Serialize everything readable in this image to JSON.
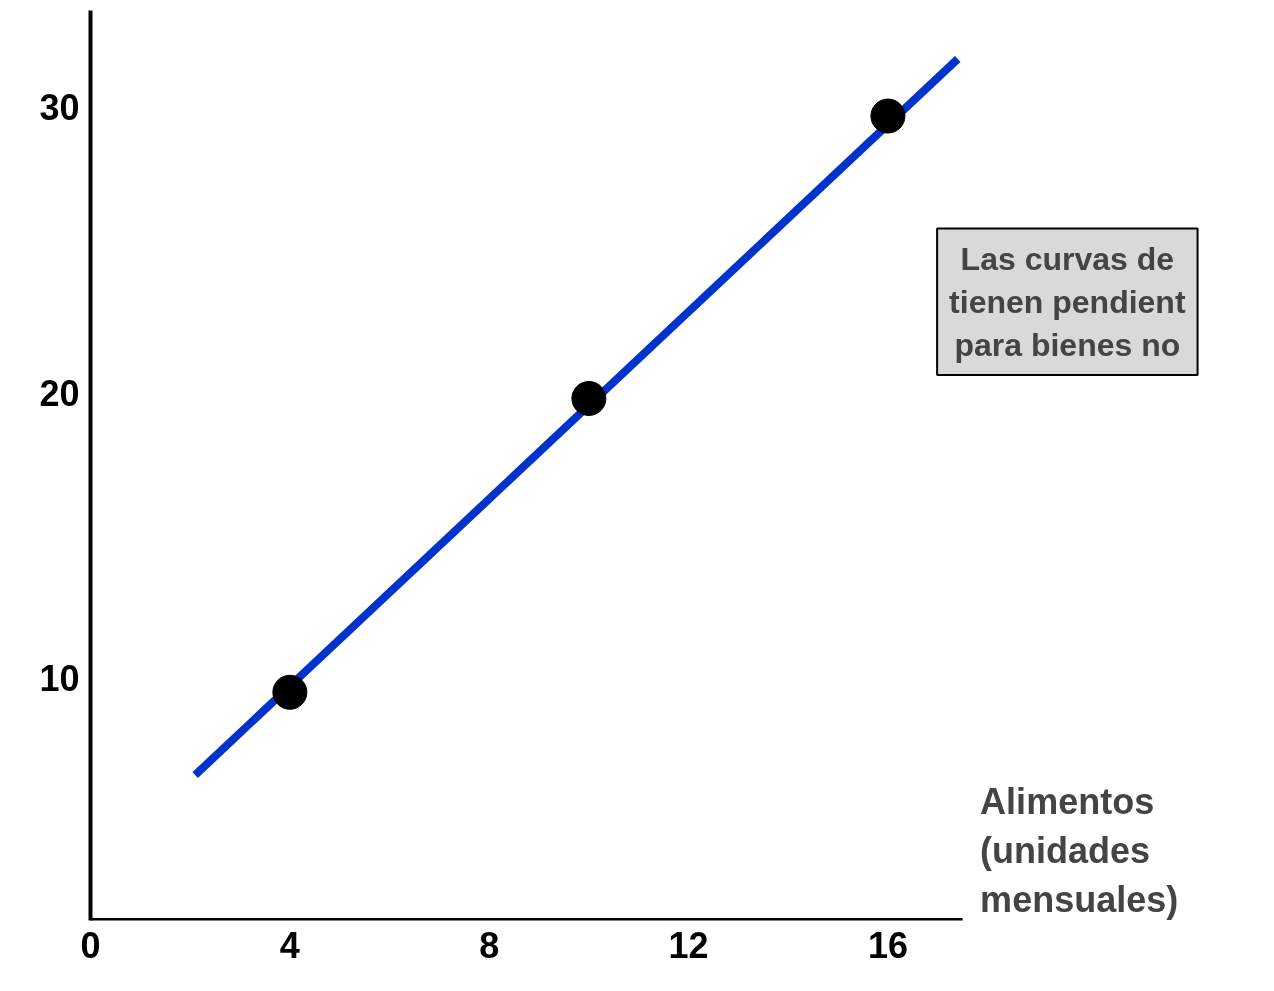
{
  "chart_data": {
    "type": "line",
    "xlabel": "Alimentos (unidades mensuales)",
    "xlim": [
      0,
      17.5
    ],
    "ylim": [
      1.5,
      33.4
    ],
    "xticks": [
      0,
      4,
      8,
      12,
      16
    ],
    "yticks": [
      10,
      20,
      30
    ],
    "grid": false,
    "series": [
      {
        "color": "#0033cc",
        "line_style": "solid",
        "marker": "none",
        "x": [
          2.1,
          17.4
        ],
        "values": [
          6.6,
          31.7
        ]
      },
      {
        "type": "scatter",
        "color": "#000000",
        "marker": "circle",
        "x": [
          4,
          10,
          16
        ],
        "values": [
          9.5,
          19.8,
          29.7
        ]
      }
    ],
    "annotations": [
      "Las curvas de\ntienen pendient\npara bienes no"
    ]
  }
}
